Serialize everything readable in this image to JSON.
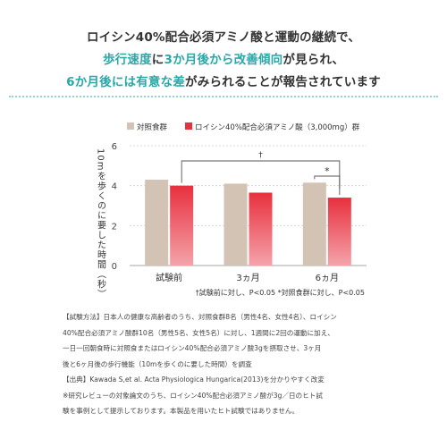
{
  "headline": {
    "line1": "ロイシン40%配合必須アミノ酸と運動の継続で、",
    "line2_a": "歩行速度",
    "line2_b": "に",
    "line2_c": "3か月後から改善傾向",
    "line2_d": "が見られ、",
    "line3_a": "6か月後には有意な差",
    "line3_b": "がみられることが報告されています"
  },
  "colors": {
    "accent": "#2aa7a7",
    "control": "#d2c3b4",
    "leucine": "#e8303e"
  },
  "chart_data": {
    "type": "bar",
    "categories": [
      "試験前",
      "3ヵ月",
      "6ヵ月"
    ],
    "series": [
      {
        "name": "対照食群",
        "values": [
          4.3,
          4.1,
          4.15
        ],
        "color": "#d2c3b4"
      },
      {
        "name": "ロイシン40%配合必須アミノ酸（3,000mg）群",
        "values": [
          4.0,
          3.65,
          3.4
        ],
        "color": "#e8303e"
      }
    ],
    "ylabel": "10mを歩くのに要した時間（秒）",
    "ylim": [
      0,
      6
    ],
    "yticks": [
      0,
      2,
      4,
      6
    ],
    "grid": true,
    "legend_position": "top",
    "annotations": {
      "dagger": "†",
      "star": "*"
    },
    "footnote": "†試験前に対し、P<0.05 *対照食群に対し、P<0.05"
  },
  "notes": [
    "【試験方法】日本人の健康な高齢者のうち、対照食群8名（男性4名、女性4名）、ロイシン",
    "40%配合必須アミノ酸群10名（男性5名、女性5名）に対し、1週間に2回の運動に加え、",
    "一日一回朝食時に対照食またはロイシン40%配合必須アミノ酸3gを摂取させ、3ヶ月",
    "後と6ヶ月後の歩行機能（10mを歩くのに要した時間）を調査",
    "【出典】Kawada S,et al. Acta Physiologica Hungarica(2013)を分かりやすく改変",
    "※研究レビューの対象論文のうち、ロイシン40%配合必須アミノ酸が3g／日のヒト試",
    "験を事例として提示しております。本製品を用いたヒト試験ではありません。"
  ]
}
